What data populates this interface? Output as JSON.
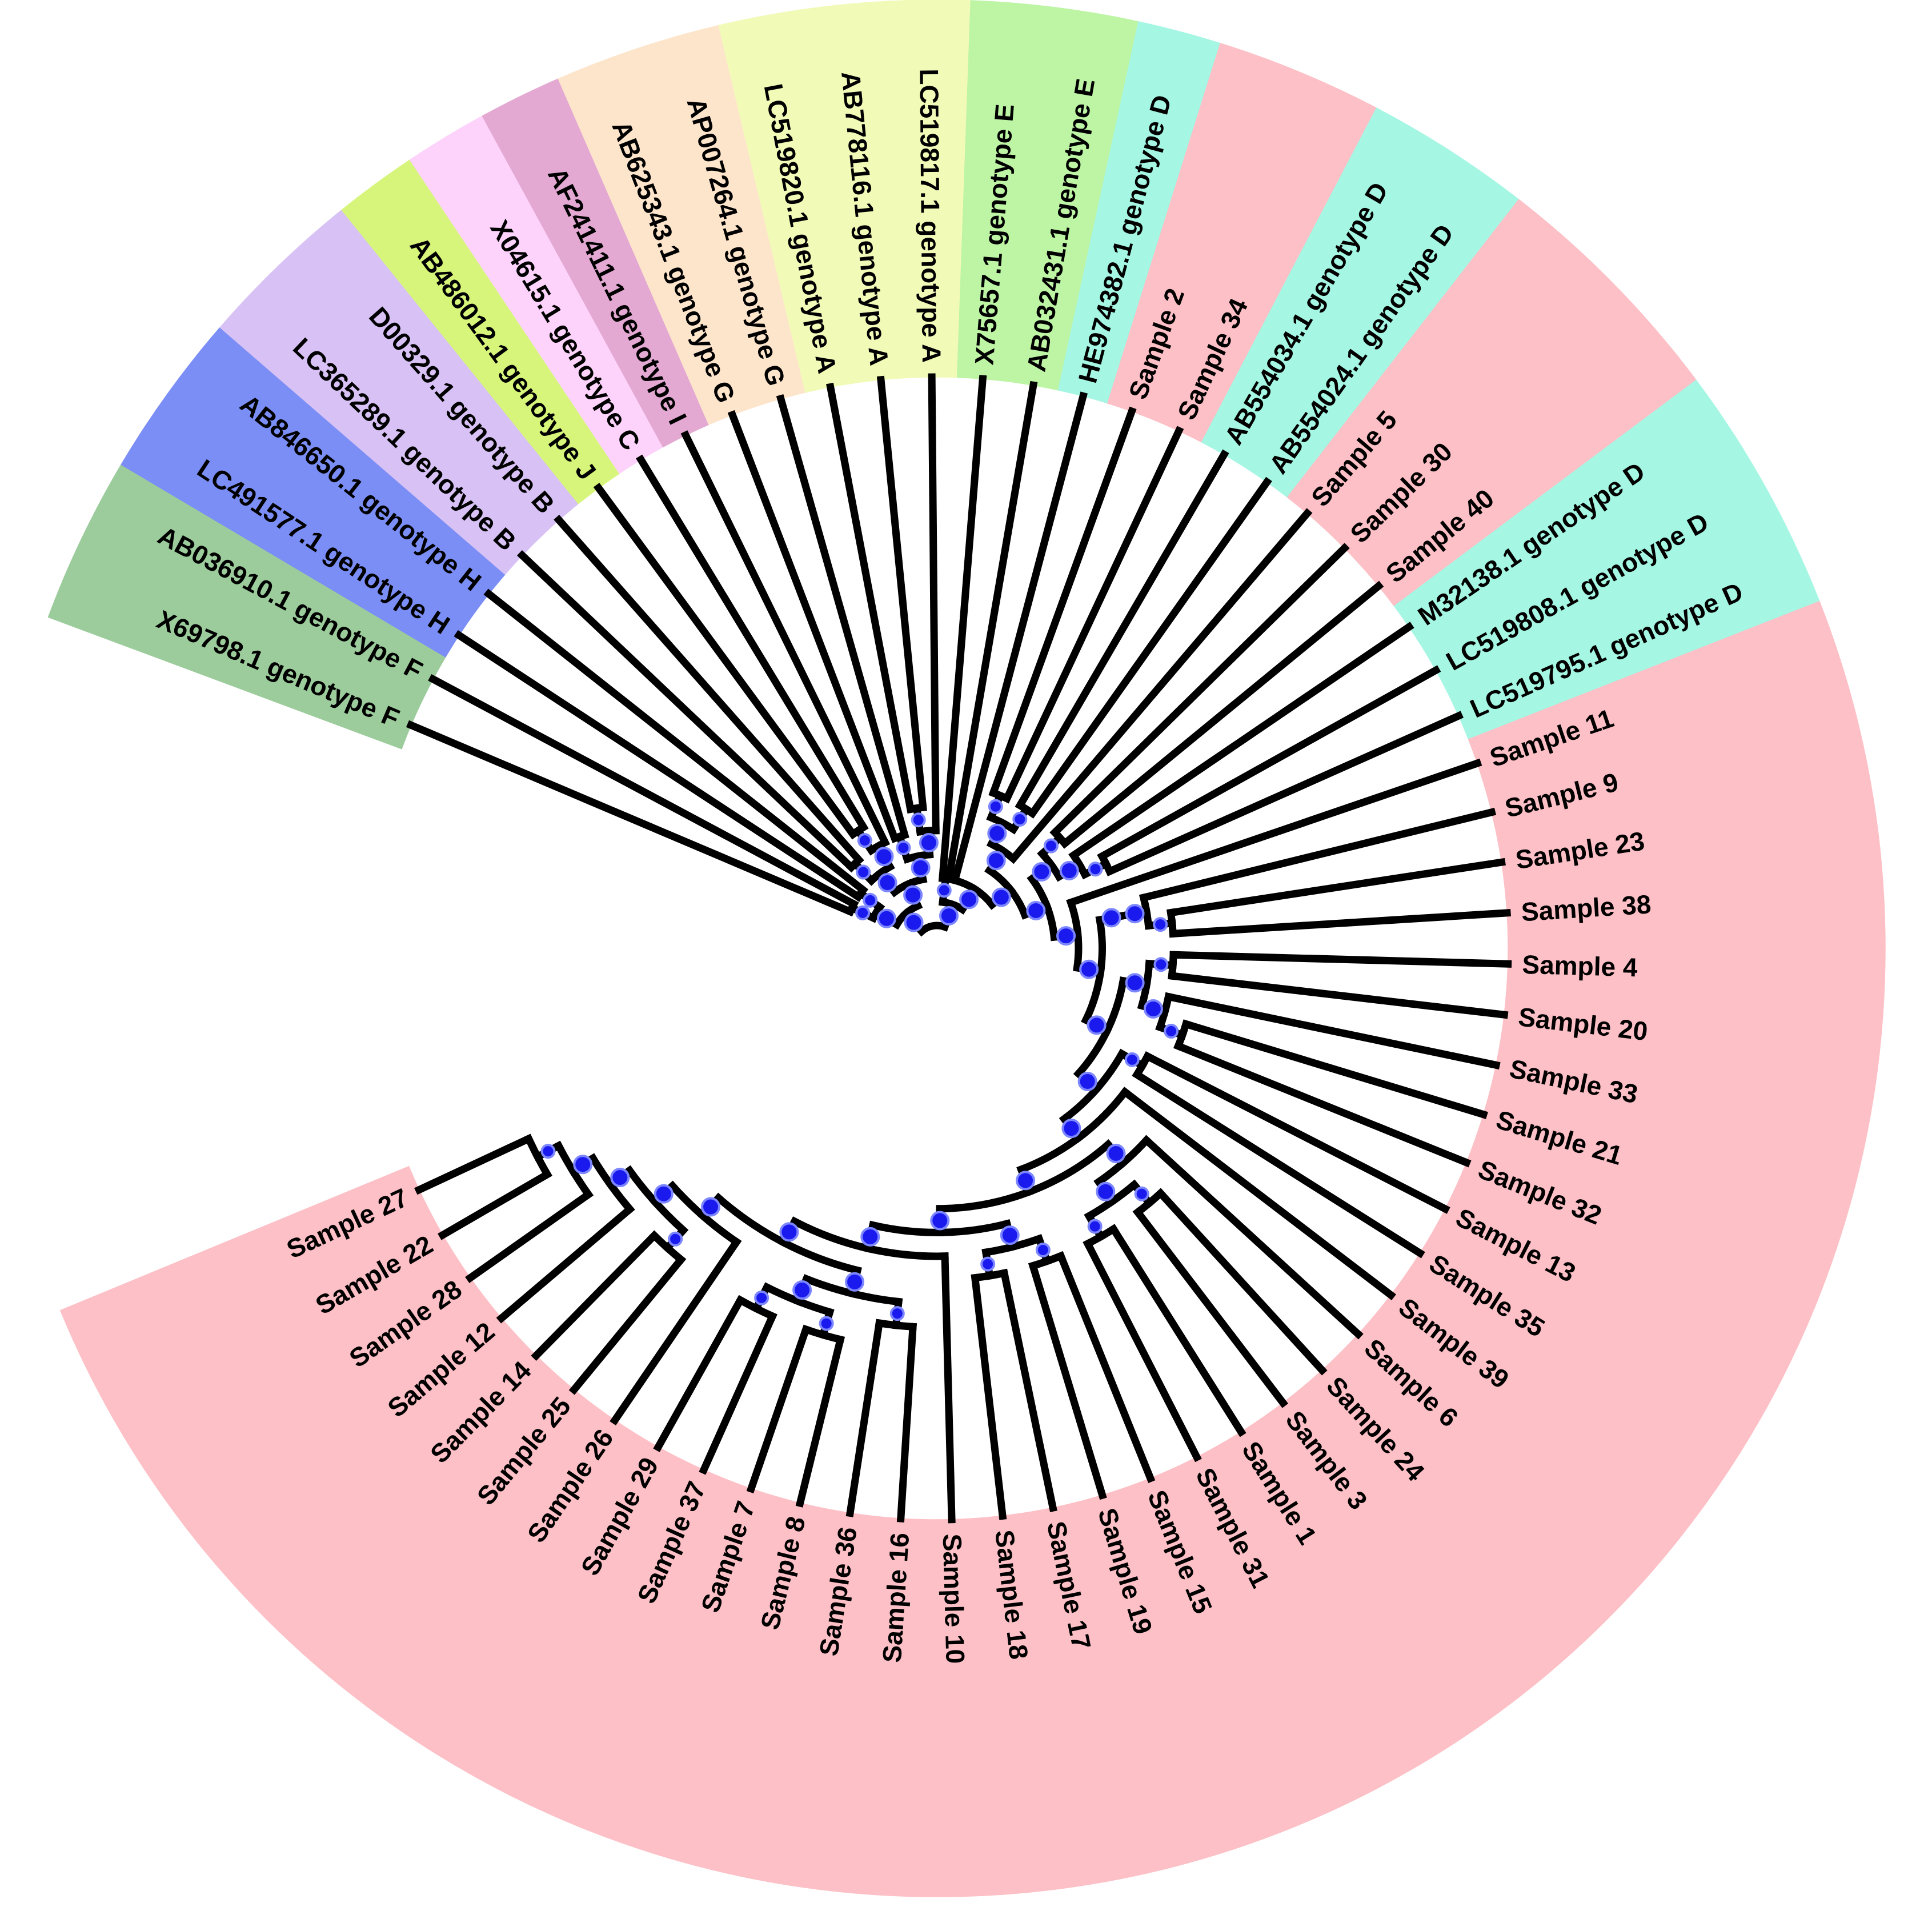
{
  "figure": {
    "type": "circular-phylogenetic-tree",
    "leaf_order_clockwise_from_left": "X69798.1 genotype F first, Sample 27 last"
  },
  "clade_colors": {
    "F": "#9ccc9c",
    "H": "#7b8ef5",
    "B": "#d8c2f5",
    "J": "#d6f57a",
    "C": "#fdd3fb",
    "I": "#e3a9d3",
    "G": "#fde5cc",
    "A": "#f2fab8",
    "E": "#bdf5a5",
    "D": "#a6f6e4",
    "sample": "#fcc0c6"
  },
  "node_color": "#1a1aee",
  "leaves": [
    {
      "label": "X69798.1 genotype F",
      "group": "F"
    },
    {
      "label": "AB036910.1 genotype F",
      "group": "F"
    },
    {
      "label": "LC491577.1 genotype H",
      "group": "H"
    },
    {
      "label": "AB846650.1 genotype H",
      "group": "H"
    },
    {
      "label": "LC365289.1 genotype B",
      "group": "B"
    },
    {
      "label": "D00329.1 genotype B",
      "group": "B"
    },
    {
      "label": "AB486012.1 genotype J",
      "group": "J"
    },
    {
      "label": "X04615.1 genotype C",
      "group": "C"
    },
    {
      "label": "AF241411.1 genotype I",
      "group": "I"
    },
    {
      "label": "AB625343.1 genotype G",
      "group": "G"
    },
    {
      "label": "AP007264.1 genotype G",
      "group": "G"
    },
    {
      "label": "LC519820.1 genotype A",
      "group": "A"
    },
    {
      "label": "AB778116.1 genotype A",
      "group": "A"
    },
    {
      "label": "LC519817.1 genotype A",
      "group": "A"
    },
    {
      "label": "X75657.1 genotype E",
      "group": "E"
    },
    {
      "label": "AB032431.1 genotype E",
      "group": "E"
    },
    {
      "label": "HE974382.1 genotype D",
      "group": "D"
    },
    {
      "label": "Sample 2",
      "group": "sample"
    },
    {
      "label": "Sample 34",
      "group": "sample"
    },
    {
      "label": "AB554034.1 genotype D",
      "group": "D"
    },
    {
      "label": "AB554024.1 genotype D",
      "group": "D"
    },
    {
      "label": "Sample 5",
      "group": "sample"
    },
    {
      "label": "Sample 30",
      "group": "sample"
    },
    {
      "label": "Sample 40",
      "group": "sample"
    },
    {
      "label": "M32138.1 genotype D",
      "group": "D"
    },
    {
      "label": "LC519808.1 genotype D",
      "group": "D"
    },
    {
      "label": "LC519795.1 genotype D",
      "group": "D"
    },
    {
      "label": "Sample 11",
      "group": "sample"
    },
    {
      "label": "Sample 9",
      "group": "sample"
    },
    {
      "label": "Sample 23",
      "group": "sample"
    },
    {
      "label": "Sample 38",
      "group": "sample"
    },
    {
      "label": "Sample 4",
      "group": "sample"
    },
    {
      "label": "Sample 20",
      "group": "sample"
    },
    {
      "label": "Sample 33",
      "group": "sample"
    },
    {
      "label": "Sample 21",
      "group": "sample"
    },
    {
      "label": "Sample 32",
      "group": "sample"
    },
    {
      "label": "Sample 13",
      "group": "sample"
    },
    {
      "label": "Sample 35",
      "group": "sample"
    },
    {
      "label": "Sample 39",
      "group": "sample"
    },
    {
      "label": "Sample 6",
      "group": "sample"
    },
    {
      "label": "Sample 24",
      "group": "sample"
    },
    {
      "label": "Sample 3",
      "group": "sample"
    },
    {
      "label": "Sample 1",
      "group": "sample"
    },
    {
      "label": "Sample 31",
      "group": "sample"
    },
    {
      "label": "Sample 15",
      "group": "sample"
    },
    {
      "label": "Sample 19",
      "group": "sample"
    },
    {
      "label": "Sample 17",
      "group": "sample"
    },
    {
      "label": "Sample 18",
      "group": "sample"
    },
    {
      "label": "Sample 10",
      "group": "sample"
    },
    {
      "label": "Sample 16",
      "group": "sample"
    },
    {
      "label": "Sample 36",
      "group": "sample"
    },
    {
      "label": "Sample 8",
      "group": "sample"
    },
    {
      "label": "Sample 7",
      "group": "sample"
    },
    {
      "label": "Sample 37",
      "group": "sample"
    },
    {
      "label": "Sample 29",
      "group": "sample"
    },
    {
      "label": "Sample 26",
      "group": "sample"
    },
    {
      "label": "Sample 25",
      "group": "sample"
    },
    {
      "label": "Sample 14",
      "group": "sample"
    },
    {
      "label": "Sample 12",
      "group": "sample"
    },
    {
      "label": "Sample 28",
      "group": "sample"
    },
    {
      "label": "Sample 22",
      "group": "sample"
    },
    {
      "label": "Sample 27",
      "group": "sample"
    }
  ],
  "tree": [
    [
      [
        [
          "X69798.1 genotype F",
          "AB036910.1 genotype F"
        ],
        [
          "LC491577.1 genotype H",
          "AB846650.1 genotype H"
        ]
      ],
      [
        [
          [
            "LC365289.1 genotype B",
            "D00329.1 genotype B"
          ],
          [
            [
              "AB486012.1 genotype J",
              "X04615.1 genotype C"
            ],
            "AF241411.1 genotype I"
          ]
        ],
        [
          [
            "AB625343.1 genotype G",
            "AP007264.1 genotype G"
          ],
          [
            [
              "LC519820.1 genotype A",
              "AB778116.1 genotype A"
            ],
            "LC519817.1 genotype A"
          ]
        ]
      ]
    ],
    [
      [
        "X75657.1 genotype E",
        "AB032431.1 genotype E"
      ],
      [
        "HE974382.1 genotype D",
        [
          [
            [
              [
                "Sample 2",
                "Sample 34"
              ],
              [
                "AB554034.1 genotype D",
                "AB554024.1 genotype D"
              ]
            ],
            "Sample 5"
          ],
          [
            [
              [
                "Sample 30",
                "Sample 40"
              ],
              [
                "M32138.1 genotype D",
                [
                  "LC519808.1 genotype D",
                  "LC519795.1 genotype D"
                ]
              ]
            ],
            [
              "Sample 11",
              [
                [
                  [
                    "Sample 9",
                    [
                      "Sample 23",
                      "Sample 38"
                    ]
                  ]
                ],
                [
                  [
                    [
                      "Sample 4",
                      "Sample 20"
                    ],
                    [
                      "Sample 33",
                      [
                        "Sample 21",
                        "Sample 32"
                      ]
                    ]
                  ],
                  [
                    [
                      "Sample 13",
                      "Sample 35"
                    ],
                    [
                      "Sample 39",
                      [
                        [
                          "Sample 6",
                          [
                            [
                              "Sample 24",
                              "Sample 3"
                            ],
                            [
                              "Sample 1",
                              "Sample 31"
                            ]
                          ]
                        ],
                        [
                          [
                            [
                              "Sample 15",
                              "Sample 19"
                            ],
                            [
                              "Sample 17",
                              "Sample 18"
                            ]
                          ],
                          [
                            "Sample 10",
                            [
                              [
                                [
                                  "Sample 16",
                                  "Sample 36"
                                ],
                                [
                                  [
                                    "Sample 8",
                                    "Sample 7"
                                  ],
                                  [
                                    "Sample 37",
                                    "Sample 29"
                                  ]
                                ]
                              ],
                              [
                                "Sample 26",
                                [
                                  [
                                    "Sample 25",
                                    "Sample 14"
                                  ],
                                  [
                                    "Sample 12",
                                    [
                                      "Sample 28",
                                      [
                                        "Sample 22",
                                        "Sample 27"
                                      ]
                                    ]
                                  ]
                                ]
                              ]
                            ]
                          ]
                        ]
                      ]
                    ]
                  ]
                ]
              ]
            ]
          ]
        ]
      ]
    ]
  ]
}
